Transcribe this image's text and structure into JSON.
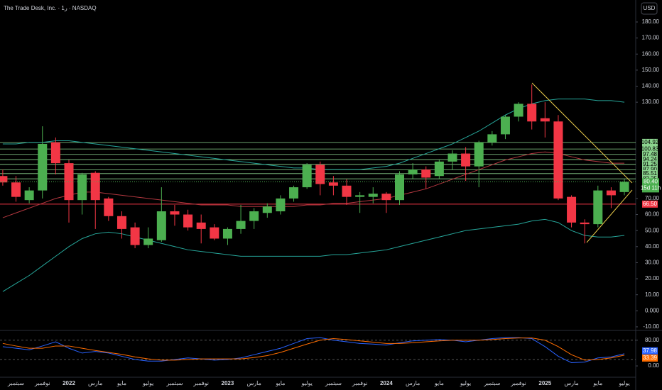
{
  "chart_data": {
    "type": "candlestick",
    "title": "The Trade Desk, Inc. · 1ر · NASDAQ",
    "currency": "USD",
    "categories": [
      null,
      "سبتمبر",
      null,
      "نوفمبر",
      null,
      "2022",
      null,
      "مارس",
      null,
      "مايو",
      null,
      "يوليو",
      null,
      "سبتمبر",
      null,
      "نوفمبر",
      null,
      "2023",
      null,
      "مارس",
      null,
      "مايو",
      null,
      "يوليو",
      null,
      "سبتمبر",
      null,
      "نوفمبر",
      null,
      "2024",
      null,
      "مارس",
      null,
      "مايو",
      null,
      "يوليو",
      null,
      "سبتمبر",
      null,
      "نوفمبر",
      null,
      "2025",
      null,
      "مارس",
      null,
      "مايو",
      null,
      "يوليو"
    ],
    "open": [
      84,
      80,
      69,
      75,
      105,
      92,
      69,
      86,
      70,
      59,
      52,
      41,
      44,
      62,
      60,
      55,
      52,
      45,
      51,
      56,
      61,
      62,
      70,
      77,
      91,
      80,
      78,
      71,
      71,
      73,
      69,
      85,
      88,
      84,
      93,
      98,
      90,
      105,
      110,
      121,
      129,
      120,
      118,
      71,
      55,
      54,
      75,
      74
    ],
    "high": [
      88,
      84,
      77,
      115,
      108,
      94,
      86,
      87,
      71,
      62,
      55,
      52,
      77,
      66,
      63,
      60,
      54,
      52,
      66,
      64,
      67,
      72,
      78,
      92,
      93,
      84,
      82,
      74,
      77,
      74,
      87,
      92,
      90,
      94,
      100,
      102,
      106,
      112,
      122,
      130,
      141,
      130,
      122,
      72,
      57,
      78,
      77,
      82
    ],
    "low": [
      78,
      68,
      67,
      70,
      85,
      55,
      60,
      51,
      56,
      45,
      39,
      39,
      43,
      53,
      50,
      42,
      44,
      41,
      48,
      51,
      58,
      60,
      68,
      76,
      72,
      72,
      66,
      61,
      67,
      61,
      66,
      82,
      76,
      82,
      88,
      81,
      77,
      103,
      107,
      118,
      113,
      108,
      69,
      52,
      42,
      52,
      64,
      72
    ],
    "close": [
      80,
      71,
      75,
      104,
      92,
      69,
      85,
      69,
      59,
      51,
      41,
      45,
      62,
      60,
      52,
      51,
      45,
      51,
      56,
      62,
      65,
      70,
      77,
      91,
      79,
      78,
      71,
      72,
      73,
      69,
      85,
      88,
      83,
      93,
      98,
      90,
      105,
      110,
      121,
      129,
      118,
      118,
      70,
      55,
      54,
      75,
      72,
      80.4
    ],
    "up_color": "#4caf50",
    "down_color": "#f23645",
    "ylim": [
      -11.8,
      193.7
    ],
    "yticks": [
      {
        "value": 180,
        "label": "180.00"
      },
      {
        "value": 170,
        "label": "170.00"
      },
      {
        "value": 160,
        "label": "160.00"
      },
      {
        "value": 150,
        "label": "150.00"
      },
      {
        "value": 140,
        "label": "140.00"
      },
      {
        "value": 130,
        "label": "130.00"
      },
      {
        "value": 70,
        "label": "70.00"
      },
      {
        "value": 60,
        "label": "60.00"
      },
      {
        "value": 50,
        "label": "50.00"
      },
      {
        "value": 40,
        "label": "40.00"
      },
      {
        "value": 30,
        "label": "30.00"
      },
      {
        "value": 20,
        "label": "20.00"
      },
      {
        "value": 10,
        "label": "10.00"
      },
      {
        "value": 0,
        "label": "0.000"
      },
      {
        "value": -10,
        "label": "-10.00"
      }
    ],
    "overlays": [
      {
        "color": "#26a69a",
        "values": [
          104,
          104,
          105,
          105,
          106,
          106,
          105,
          104,
          103,
          102,
          101,
          100,
          99,
          98,
          97,
          96,
          95,
          94,
          93,
          92,
          91,
          90,
          89,
          89,
          88,
          88,
          88,
          88,
          89,
          90,
          92,
          95,
          98,
          101,
          104,
          108,
          112,
          117,
          122,
          126,
          129,
          131,
          132,
          132,
          132,
          131,
          131,
          130
        ]
      },
      {
        "color": "#26a69a",
        "values": [
          12,
          17,
          22,
          28,
          34,
          40,
          45,
          48,
          49,
          48,
          46,
          44,
          42,
          40,
          38,
          37,
          36,
          35,
          34,
          34,
          34,
          34,
          34,
          34,
          34,
          35,
          35,
          36,
          37,
          38,
          40,
          42,
          44,
          46,
          48,
          50,
          51,
          52,
          53,
          54,
          56,
          57,
          55,
          50,
          47,
          46,
          46,
          47
        ]
      },
      {
        "color": "#b2373f",
        "values": [
          58,
          61,
          64,
          67,
          70,
          72,
          74,
          74,
          73,
          72,
          71,
          70,
          69,
          68,
          67,
          66,
          66,
          66,
          65,
          65,
          65,
          65,
          65,
          66,
          66,
          67,
          67,
          68,
          69,
          70,
          72,
          74,
          76,
          79,
          82,
          85,
          88,
          91,
          94,
          96,
          98,
          99,
          98,
          96,
          94,
          93,
          92,
          92
        ]
      }
    ],
    "levels": [
      104.92,
      100.83,
      97.48,
      94.24,
      91.25,
      {
        "value": 87.9,
        "label": "87.90"
      },
      85.51,
      82.25
    ],
    "level_color": "#8bd38e",
    "support": {
      "value": 66.5,
      "label": "66.50",
      "color": "#f23645"
    },
    "last_price": {
      "value": 80.4,
      "label": "80.40"
    },
    "countdown": "15d 11h",
    "oscillator": {
      "ylim": [
        -33,
        106
      ],
      "yticks": [
        {
          "value": 80,
          "label": "80.00"
        },
        {
          "value": 0,
          "label": "0.00"
        }
      ],
      "bands": [
        80,
        20
      ],
      "series": [
        {
          "color": "#2962ff",
          "values": [
            60,
            55,
            50,
            62,
            75,
            55,
            40,
            45,
            40,
            30,
            20,
            15,
            15,
            20,
            25,
            22,
            18,
            20,
            25,
            35,
            45,
            55,
            70,
            85,
            88,
            80,
            75,
            70,
            68,
            65,
            72,
            78,
            80,
            82,
            80,
            75,
            80,
            85,
            88,
            88,
            85,
            60,
            30,
            10,
            12,
            25,
            28,
            37.98
          ],
          "value_label": "37.98"
        },
        {
          "color": "#ff6d00",
          "values": [
            70,
            62,
            55,
            55,
            62,
            62,
            55,
            48,
            42,
            36,
            28,
            22,
            18,
            18,
            20,
            22,
            22,
            22,
            22,
            26,
            32,
            42,
            55,
            68,
            80,
            85,
            82,
            78,
            74,
            70,
            70,
            72,
            75,
            78,
            80,
            80,
            80,
            82,
            85,
            87,
            87,
            80,
            60,
            35,
            18,
            20,
            25,
            33.39
          ],
          "value_label": "33.39"
        }
      ]
    }
  }
}
